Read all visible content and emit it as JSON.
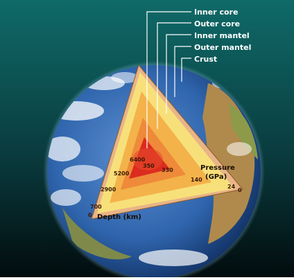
{
  "labels": {
    "inner_core": "Inner core",
    "outer_core": "Outer core",
    "inner_mantel": "Inner mantel",
    "outer_mantel": "Outer mantel",
    "crust": "Crust"
  },
  "axes": {
    "depth_title": "Depth (km)",
    "pressure_title_1": "Pressure",
    "pressure_title_2": "(GPa)"
  },
  "depth_values": [
    "0",
    "700",
    "2900",
    "5200",
    "6400"
  ],
  "pressure_values": [
    "0",
    "24",
    "140",
    "330",
    "350"
  ],
  "colors": {
    "space_top": "#0d5a5a",
    "space_bottom": "#000000",
    "ocean": "#2c63a6",
    "crust": "#e9b487",
    "outer_mantel": "#f7e07a",
    "inner_mantel": "#f4b24a",
    "outer_core": "#ee8a3a",
    "inner_core": "#dc2b1f",
    "label": "#ffffff"
  }
}
